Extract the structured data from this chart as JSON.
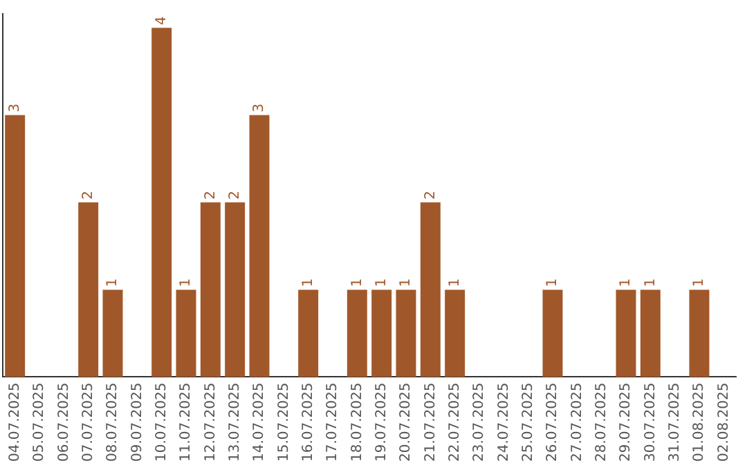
{
  "chart_data": {
    "type": "bar",
    "categories": [
      "04.07.2025",
      "05.07.2025",
      "06.07.2025",
      "07.07.2025",
      "08.07.2025",
      "09.07.2025",
      "10.07.2025",
      "11.07.2025",
      "12.07.2025",
      "13.07.2025",
      "14.07.2025",
      "15.07.2025",
      "16.07.2025",
      "17.07.2025",
      "18.07.2025",
      "19.07.2025",
      "20.07.2025",
      "21.07.2025",
      "22.07.2025",
      "23.07.2025",
      "24.07.2025",
      "25.07.2025",
      "26.07.2025",
      "27.07.2025",
      "28.07.2025",
      "29.07.2025",
      "30.07.2025",
      "31.07.2025",
      "01.08.2025",
      "02.08.2025"
    ],
    "values": [
      3,
      0,
      0,
      2,
      1,
      0,
      4,
      1,
      2,
      2,
      3,
      0,
      1,
      0,
      1,
      1,
      1,
      2,
      1,
      0,
      0,
      0,
      1,
      0,
      0,
      1,
      1,
      0,
      1,
      0
    ],
    "value_labels": [
      "3",
      null,
      null,
      "2",
      "1",
      null,
      "4",
      "1",
      "2",
      "2",
      "3",
      null,
      "1",
      null,
      "1",
      "1",
      "1",
      "2",
      "1",
      null,
      null,
      null,
      "1",
      null,
      null,
      "1",
      "1",
      null,
      "1",
      null
    ],
    "color": "#a0582a",
    "ylim": [
      0,
      4.16
    ],
    "grid": false,
    "legend": false,
    "tick_labels": "x"
  }
}
